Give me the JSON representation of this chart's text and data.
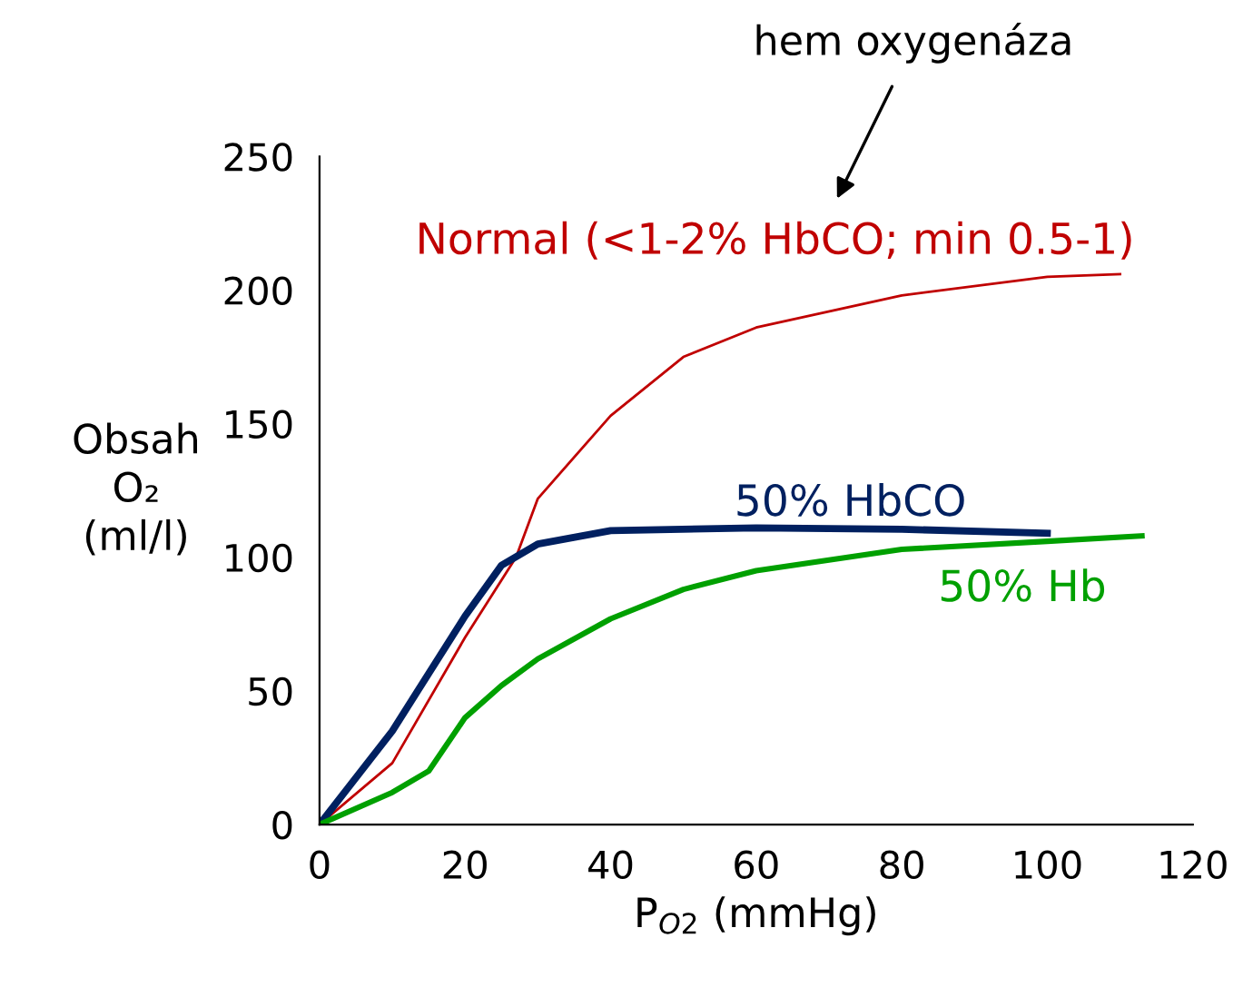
{
  "chart_data": {
    "type": "line",
    "xlabel": "P$_{O2}$ (mmHg)",
    "ylabel": "Obsah\nO₂\n(ml/l)",
    "xlim": [
      0,
      120
    ],
    "ylim": [
      0,
      250
    ],
    "xticks": [
      0,
      20,
      40,
      60,
      80,
      100,
      120
    ],
    "yticks": [
      0,
      50,
      100,
      150,
      200,
      250
    ],
    "grid": false,
    "legend": false,
    "marker": "none",
    "line_style": "solid",
    "annotations": [
      "hem oxygenáza"
    ],
    "series": [
      {
        "name": "Normal (<1-2% HbCO; min 0.5-1)",
        "color": "#c00000",
        "x": [
          0,
          10,
          20,
          27,
          30,
          40,
          50,
          60,
          80,
          100,
          110
        ],
        "values": [
          0,
          23,
          70,
          100,
          122,
          153,
          175,
          186,
          198,
          205,
          206
        ]
      },
      {
        "name": "50% HbCO",
        "color": "#002060",
        "x": [
          0,
          10,
          20,
          25,
          30,
          40,
          60,
          80,
          100
        ],
        "values": [
          0,
          35,
          78,
          97,
          105,
          110,
          111,
          110.5,
          109
        ]
      },
      {
        "name": "50% Hb",
        "color": "#00a000",
        "x": [
          0,
          10,
          15,
          20,
          25,
          30,
          40,
          50,
          60,
          80,
          100,
          113
        ],
        "values": [
          0,
          12,
          20,
          40,
          52,
          62,
          77,
          88,
          95,
          103,
          106,
          108
        ]
      }
    ]
  }
}
